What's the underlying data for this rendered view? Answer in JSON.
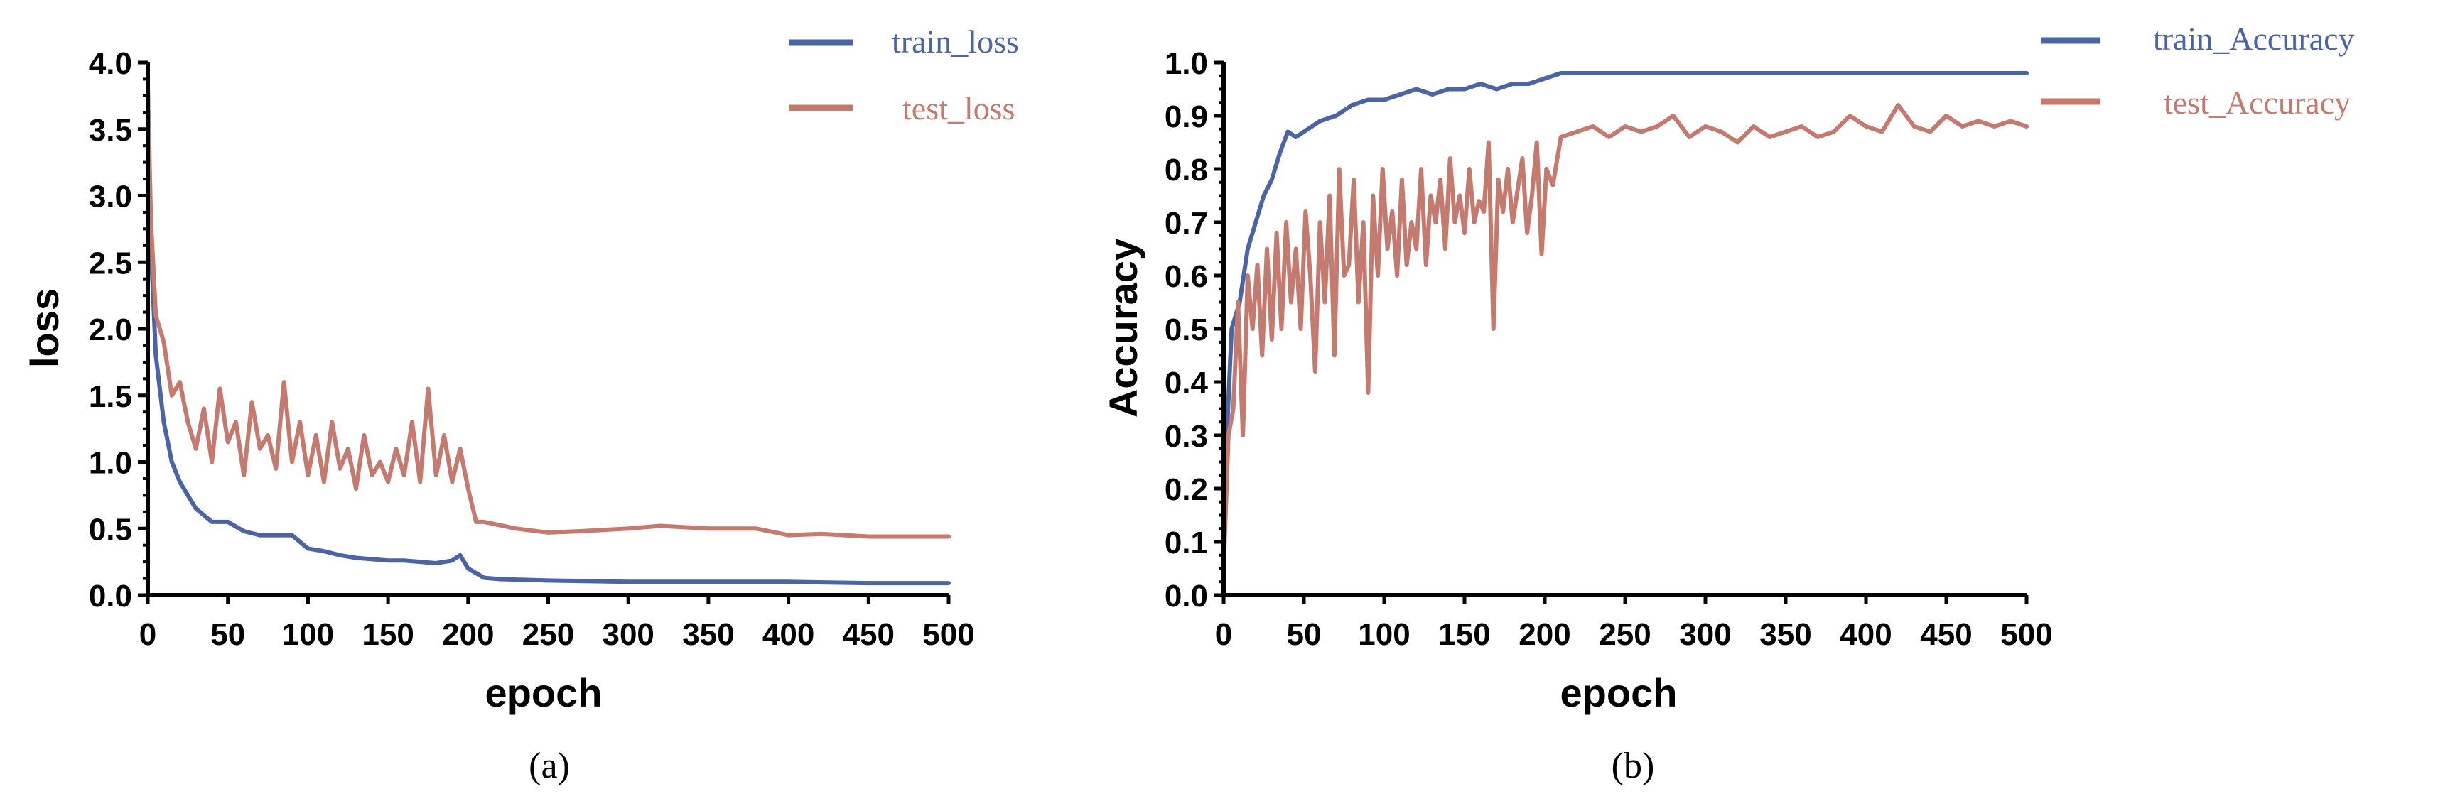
{
  "colors": {
    "train": "#4a64a4",
    "test": "#c47a6e",
    "axis": "#000000"
  },
  "chart_data": [
    {
      "type": "line",
      "caption": "(a)",
      "xlabel": "epoch",
      "ylabel": "loss",
      "xlim": [
        0,
        500
      ],
      "ylim": [
        0,
        4
      ],
      "xticks": [
        "0",
        "50",
        "100",
        "150",
        "200",
        "250",
        "300",
        "350",
        "400",
        "450",
        "500"
      ],
      "yticks": [
        "0.0",
        "0.5",
        "1.0",
        "1.5",
        "2.0",
        "2.5",
        "3.0",
        "3.5",
        "4.0"
      ],
      "legend": "top-right",
      "series": [
        {
          "name": "train_loss",
          "x": [
            0,
            2,
            5,
            10,
            15,
            20,
            30,
            40,
            50,
            60,
            70,
            80,
            90,
            100,
            110,
            120,
            130,
            140,
            150,
            160,
            170,
            180,
            190,
            195,
            200,
            210,
            220,
            250,
            300,
            350,
            400,
            450,
            500
          ],
          "y": [
            3.8,
            2.6,
            1.8,
            1.3,
            1.0,
            0.85,
            0.65,
            0.55,
            0.55,
            0.48,
            0.45,
            0.45,
            0.45,
            0.35,
            0.33,
            0.3,
            0.28,
            0.27,
            0.26,
            0.26,
            0.25,
            0.24,
            0.26,
            0.3,
            0.2,
            0.13,
            0.12,
            0.11,
            0.1,
            0.1,
            0.1,
            0.09,
            0.09
          ]
        },
        {
          "name": "test_loss",
          "x": [
            0,
            2,
            5,
            10,
            15,
            20,
            25,
            30,
            35,
            40,
            45,
            50,
            55,
            60,
            65,
            70,
            75,
            80,
            85,
            90,
            95,
            100,
            105,
            110,
            115,
            120,
            125,
            130,
            135,
            140,
            145,
            150,
            155,
            160,
            165,
            170,
            175,
            180,
            185,
            190,
            195,
            200,
            205,
            210,
            230,
            250,
            270,
            300,
            320,
            350,
            380,
            400,
            420,
            450,
            480,
            500
          ],
          "y": [
            3.8,
            2.8,
            2.1,
            1.9,
            1.5,
            1.6,
            1.3,
            1.1,
            1.4,
            1.0,
            1.55,
            1.15,
            1.3,
            0.9,
            1.45,
            1.1,
            1.2,
            0.95,
            1.6,
            1.0,
            1.3,
            0.9,
            1.2,
            0.85,
            1.3,
            0.95,
            1.1,
            0.8,
            1.2,
            0.9,
            1.0,
            0.85,
            1.1,
            0.9,
            1.3,
            0.85,
            1.55,
            0.9,
            1.2,
            0.85,
            1.1,
            0.8,
            0.55,
            0.55,
            0.5,
            0.47,
            0.48,
            0.5,
            0.52,
            0.5,
            0.5,
            0.45,
            0.46,
            0.44,
            0.44,
            0.44
          ]
        }
      ]
    },
    {
      "type": "line",
      "caption": "(b)",
      "xlabel": "epoch",
      "ylabel": "Accuracy",
      "xlim": [
        0,
        500
      ],
      "ylim": [
        0,
        1
      ],
      "xticks": [
        "0",
        "50",
        "100",
        "150",
        "200",
        "250",
        "300",
        "350",
        "400",
        "450",
        "500"
      ],
      "yticks": [
        "0.0",
        "0.1",
        "0.2",
        "0.3",
        "0.4",
        "0.5",
        "0.6",
        "0.7",
        "0.8",
        "0.9",
        "1.0"
      ],
      "legend": "top-right",
      "series": [
        {
          "name": "train_Accuracy",
          "x": [
            0,
            2,
            5,
            10,
            15,
            20,
            25,
            30,
            35,
            40,
            45,
            50,
            60,
            70,
            80,
            90,
            100,
            110,
            120,
            130,
            140,
            150,
            160,
            170,
            180,
            190,
            200,
            210,
            250,
            300,
            350,
            400,
            450,
            500
          ],
          "y": [
            0.05,
            0.3,
            0.5,
            0.55,
            0.65,
            0.7,
            0.75,
            0.78,
            0.83,
            0.87,
            0.86,
            0.87,
            0.89,
            0.9,
            0.92,
            0.93,
            0.93,
            0.94,
            0.95,
            0.94,
            0.95,
            0.95,
            0.96,
            0.95,
            0.96,
            0.96,
            0.97,
            0.98,
            0.98,
            0.98,
            0.98,
            0.98,
            0.98,
            0.98
          ]
        },
        {
          "name": "test_Accuracy",
          "x": [
            0,
            3,
            6,
            9,
            12,
            15,
            18,
            21,
            24,
            27,
            30,
            33,
            36,
            39,
            42,
            45,
            48,
            51,
            54,
            57,
            60,
            63,
            66,
            69,
            72,
            75,
            78,
            81,
            84,
            87,
            90,
            93,
            96,
            99,
            102,
            105,
            108,
            111,
            114,
            117,
            120,
            123,
            126,
            129,
            132,
            135,
            138,
            141,
            144,
            147,
            150,
            153,
            156,
            159,
            162,
            165,
            168,
            171,
            174,
            177,
            180,
            183,
            186,
            189,
            192,
            195,
            198,
            201,
            205,
            210,
            220,
            230,
            240,
            250,
            260,
            270,
            280,
            290,
            300,
            310,
            320,
            330,
            340,
            350,
            360,
            370,
            380,
            390,
            400,
            410,
            420,
            430,
            440,
            450,
            460,
            470,
            480,
            490,
            500
          ],
          "y": [
            0.05,
            0.3,
            0.35,
            0.55,
            0.3,
            0.6,
            0.5,
            0.62,
            0.45,
            0.65,
            0.48,
            0.68,
            0.5,
            0.7,
            0.55,
            0.65,
            0.5,
            0.72,
            0.6,
            0.42,
            0.7,
            0.55,
            0.75,
            0.45,
            0.8,
            0.6,
            0.62,
            0.78,
            0.55,
            0.7,
            0.38,
            0.75,
            0.6,
            0.8,
            0.65,
            0.72,
            0.6,
            0.78,
            0.62,
            0.7,
            0.65,
            0.8,
            0.62,
            0.75,
            0.7,
            0.78,
            0.65,
            0.82,
            0.7,
            0.75,
            0.68,
            0.8,
            0.7,
            0.74,
            0.72,
            0.85,
            0.5,
            0.78,
            0.72,
            0.8,
            0.7,
            0.76,
            0.82,
            0.68,
            0.75,
            0.85,
            0.64,
            0.8,
            0.77,
            0.86,
            0.87,
            0.88,
            0.86,
            0.88,
            0.87,
            0.88,
            0.9,
            0.86,
            0.88,
            0.87,
            0.85,
            0.88,
            0.86,
            0.87,
            0.88,
            0.86,
            0.87,
            0.9,
            0.88,
            0.87,
            0.92,
            0.88,
            0.87,
            0.9,
            0.88,
            0.89,
            0.88,
            0.89,
            0.88
          ]
        }
      ]
    }
  ]
}
